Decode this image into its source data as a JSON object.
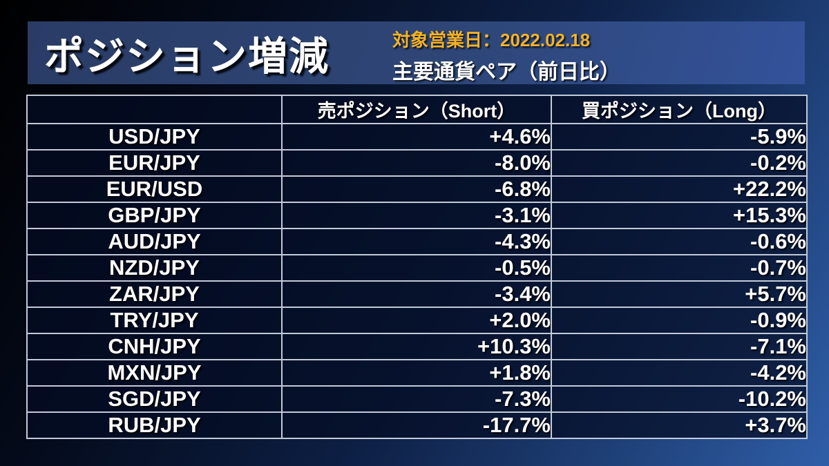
{
  "header": {
    "title": "ポジション増減",
    "date_label": "対象営業日：2022.02.18",
    "subtitle": "主要通貨ペア（前日比）"
  },
  "table": {
    "columns": [
      "",
      "売ポジション（Short）",
      "買ポジション（Long）"
    ],
    "rows": [
      {
        "pair": "USD/JPY",
        "short": "+4.6%",
        "long": "-5.9%"
      },
      {
        "pair": "EUR/JPY",
        "short": "-8.0%",
        "long": "-0.2%"
      },
      {
        "pair": "EUR/USD",
        "short": "-6.8%",
        "long": "+22.2%"
      },
      {
        "pair": "GBP/JPY",
        "short": "-3.1%",
        "long": "+15.3%"
      },
      {
        "pair": "AUD/JPY",
        "short": "-4.3%",
        "long": "-0.6%"
      },
      {
        "pair": "NZD/JPY",
        "short": "-0.5%",
        "long": "-0.7%"
      },
      {
        "pair": "ZAR/JPY",
        "short": "-3.4%",
        "long": "+5.7%"
      },
      {
        "pair": "TRY/JPY",
        "short": "+2.0%",
        "long": "-0.9%"
      },
      {
        "pair": "CNH/JPY",
        "short": "+10.3%",
        "long": "-7.1%"
      },
      {
        "pair": "MXN/JPY",
        "short": "+1.8%",
        "long": "-4.2%"
      },
      {
        "pair": "SGD/JPY",
        "short": "-7.3%",
        "long": "-10.2%"
      },
      {
        "pair": "RUB/JPY",
        "short": "-17.7%",
        "long": "+3.7%"
      }
    ]
  },
  "chart_data": {
    "type": "table",
    "title": "ポジション増減",
    "subtitle": "主要通貨ペア（前日比）",
    "date": "2022.02.18",
    "categories": [
      "USD/JPY",
      "EUR/JPY",
      "EUR/USD",
      "GBP/JPY",
      "AUD/JPY",
      "NZD/JPY",
      "ZAR/JPY",
      "TRY/JPY",
      "CNH/JPY",
      "MXN/JPY",
      "SGD/JPY",
      "RUB/JPY"
    ],
    "series": [
      {
        "name": "売ポジション（Short）",
        "unit": "%",
        "values": [
          4.6,
          -8.0,
          -6.8,
          -3.1,
          -4.3,
          -0.5,
          -3.4,
          2.0,
          10.3,
          1.8,
          -7.3,
          -17.7
        ]
      },
      {
        "name": "買ポジション（Long）",
        "unit": "%",
        "values": [
          -5.9,
          -0.2,
          22.2,
          15.3,
          -0.6,
          -0.7,
          5.7,
          -0.9,
          -7.1,
          -4.2,
          -10.2,
          3.7
        ]
      }
    ]
  },
  "colors": {
    "accent_gold": "#f2b229",
    "title_bar_blue": "#33529a",
    "background_top_left": "#000000",
    "background_bottom_right": "#2f5ea8",
    "table_background": "#040d24",
    "grid_line": "#c3cbd9",
    "text": "#ffffff"
  }
}
